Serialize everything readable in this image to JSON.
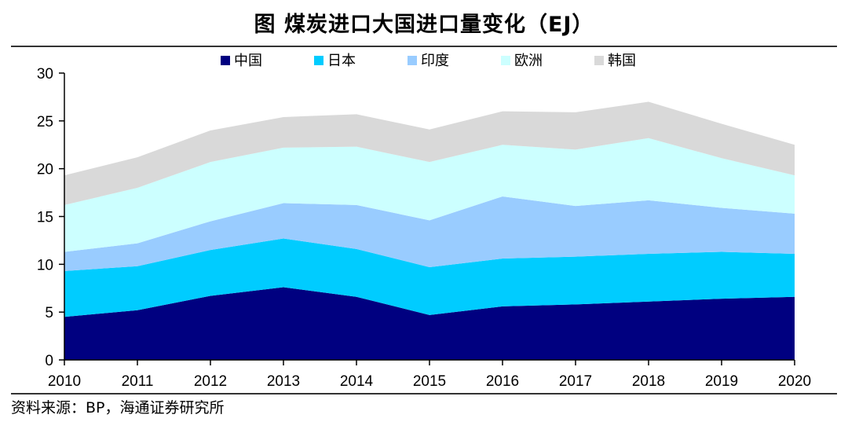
{
  "title": "图  煤炭进口大国进口量变化（EJ）",
  "source": "资料来源：BP，海通证券研究所",
  "chart_data": {
    "type": "area",
    "stacked": true,
    "title": "图  煤炭进口大国进口量变化（EJ）",
    "xlabel": "",
    "ylabel": "",
    "ylim": [
      0,
      30
    ],
    "yticks": [
      0,
      5,
      10,
      15,
      20,
      25,
      30
    ],
    "categories": [
      "2010",
      "2011",
      "2012",
      "2013",
      "2014",
      "2015",
      "2016",
      "2017",
      "2018",
      "2019",
      "2020"
    ],
    "legend_position": "top",
    "series": [
      {
        "name": "中国",
        "color": "#000080",
        "values": [
          4.5,
          5.2,
          6.7,
          7.6,
          6.6,
          4.7,
          5.6,
          5.8,
          6.1,
          6.4,
          6.6
        ]
      },
      {
        "name": "日本",
        "color": "#00CCFF",
        "values": [
          4.8,
          4.6,
          4.8,
          5.1,
          5.0,
          5.0,
          5.0,
          5.0,
          5.0,
          4.9,
          4.5
        ]
      },
      {
        "name": "印度",
        "color": "#99CCFF",
        "values": [
          2.0,
          2.4,
          3.0,
          3.7,
          4.6,
          4.9,
          6.5,
          5.3,
          5.6,
          4.6,
          4.2
        ]
      },
      {
        "name": "欧洲",
        "color": "#CCFFFF",
        "values": [
          4.9,
          5.8,
          6.2,
          5.8,
          6.1,
          6.1,
          5.4,
          5.9,
          6.5,
          5.2,
          4.0
        ]
      },
      {
        "name": "韩国",
        "color": "#D9D9D9",
        "values": [
          3.1,
          3.2,
          3.3,
          3.2,
          3.4,
          3.4,
          3.5,
          3.9,
          3.8,
          3.6,
          3.2
        ]
      }
    ]
  }
}
